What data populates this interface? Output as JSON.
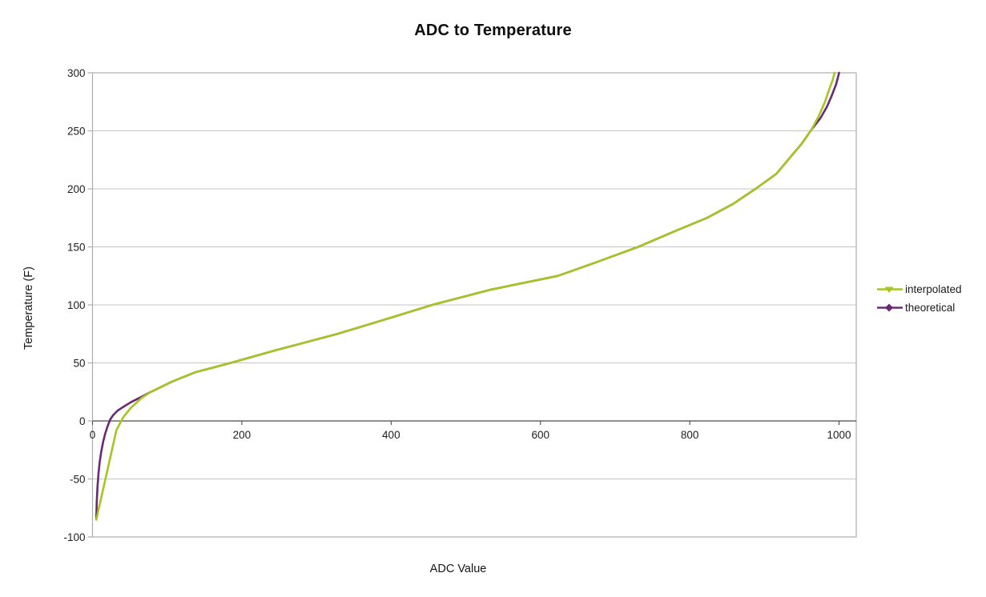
{
  "colors": {
    "background": "#FFFFFF",
    "plot_border": "#ADADAD",
    "gridline": "#C6C6C6",
    "zero_axis": "#4A4A4A",
    "text": "#1E1E1E"
  },
  "chart_data": {
    "type": "line",
    "title": "ADC to Temperature",
    "xlabel": "ADC Value",
    "ylabel": "Temperature (F)",
    "xlim": [
      0,
      1023
    ],
    "ylim": [
      -100,
      300
    ],
    "x_ticks": [
      0,
      200,
      400,
      600,
      800,
      1000
    ],
    "y_ticks": [
      -100,
      -50,
      0,
      50,
      100,
      150,
      200,
      250,
      300
    ],
    "grid": "horizontal-only",
    "x_axis_crosses_at": 0,
    "legend": {
      "position": "right-middle",
      "entries": [
        "interpolated",
        "theoretical"
      ]
    },
    "series": [
      {
        "name": "interpolated",
        "color": "#A5C521",
        "marker": "triangle-down",
        "points": [
          [
            5,
            -85
          ],
          [
            32,
            -8
          ],
          [
            41,
            3
          ],
          [
            51,
            11
          ],
          [
            66,
            20
          ],
          [
            78,
            25
          ],
          [
            107,
            34
          ],
          [
            138,
            42
          ],
          [
            185,
            50
          ],
          [
            246,
            61
          ],
          [
            287,
            68
          ],
          [
            328,
            75
          ],
          [
            390,
            87
          ],
          [
            455,
            100
          ],
          [
            532,
            113
          ],
          [
            623,
            125
          ],
          [
            676,
            137
          ],
          [
            731,
            150
          ],
          [
            778,
            163
          ],
          [
            823,
            175
          ],
          [
            858,
            187
          ],
          [
            888,
            200
          ],
          [
            916,
            213
          ],
          [
            933,
            226
          ],
          [
            950,
            239
          ],
          [
            963,
            251
          ],
          [
            973,
            263
          ],
          [
            981,
            275
          ],
          [
            987,
            286
          ],
          [
            991,
            293
          ],
          [
            994,
            300
          ]
        ]
      },
      {
        "name": "theoretical",
        "color": "#6B2876",
        "marker": "diamond",
        "points": [
          [
            5,
            -85
          ],
          [
            5.7,
            -70
          ],
          [
            6.6,
            -57
          ],
          [
            8,
            -45
          ],
          [
            9.7,
            -35
          ],
          [
            11.8,
            -26
          ],
          [
            14.3,
            -18
          ],
          [
            17,
            -11
          ],
          [
            20,
            -5
          ],
          [
            23.5,
            1
          ],
          [
            27.6,
            5
          ],
          [
            33.8,
            9
          ],
          [
            41,
            12
          ],
          [
            51,
            16
          ],
          [
            66,
            21
          ],
          [
            78,
            25
          ],
          [
            107,
            34
          ],
          [
            138,
            42
          ],
          [
            185,
            50
          ],
          [
            246,
            61
          ],
          [
            287,
            68
          ],
          [
            328,
            75
          ],
          [
            390,
            87
          ],
          [
            455,
            100
          ],
          [
            532,
            113
          ],
          [
            623,
            125
          ],
          [
            676,
            137
          ],
          [
            731,
            150
          ],
          [
            778,
            163
          ],
          [
            823,
            175
          ],
          [
            858,
            187
          ],
          [
            888,
            200
          ],
          [
            916,
            213
          ],
          [
            933,
            226
          ],
          [
            950,
            239
          ],
          [
            963,
            251
          ],
          [
            975,
            261
          ],
          [
            984,
            271
          ],
          [
            990,
            280
          ],
          [
            996,
            290
          ],
          [
            1000,
            300
          ]
        ]
      }
    ]
  }
}
